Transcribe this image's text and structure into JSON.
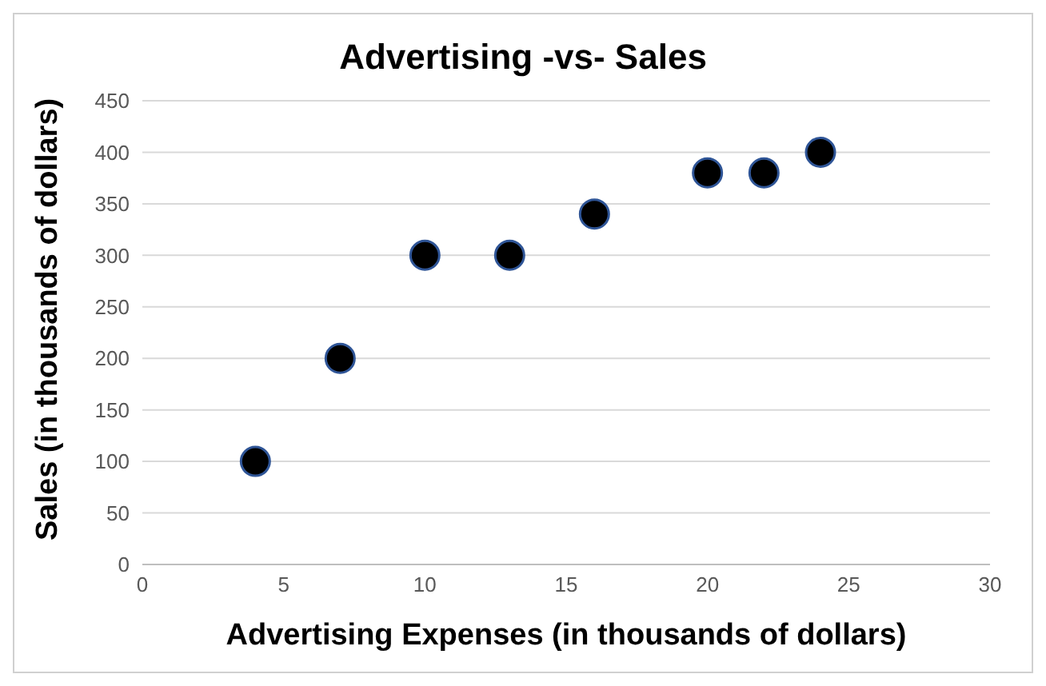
{
  "chart_data": {
    "type": "scatter",
    "title": "Advertising -vs- Sales",
    "xlabel": "Advertising Expenses (in thousands of dollars)",
    "ylabel": "Sales (in thousands of dollars)",
    "x": [
      4,
      7,
      10,
      13,
      16,
      20,
      22,
      24
    ],
    "series": [
      {
        "color": "#000000",
        "values": [
          100,
          200,
          300,
          300,
          340,
          380,
          380,
          400
        ]
      }
    ],
    "xlim": [
      0,
      30
    ],
    "xticks": [
      0,
      5,
      10,
      15,
      20,
      25,
      30
    ],
    "ylim": [
      0,
      450
    ],
    "yticks": [
      0,
      50,
      100,
      150,
      200,
      250,
      300,
      350,
      400,
      450
    ],
    "grid": "y",
    "marker": "circle"
  }
}
